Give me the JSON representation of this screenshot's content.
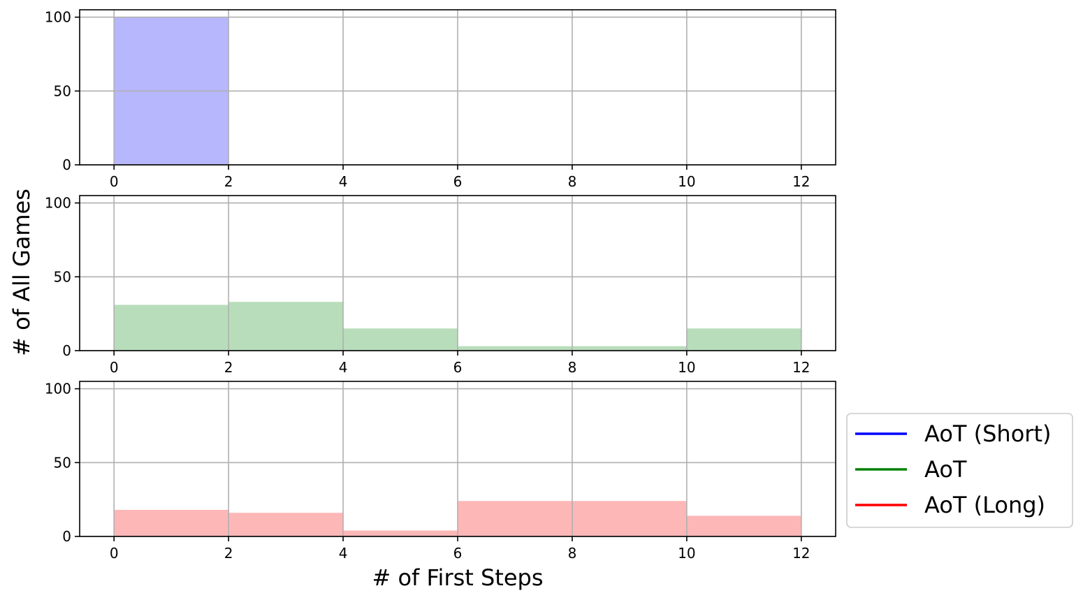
{
  "chart_data": {
    "type": "bar",
    "xlabel": "# of First Steps",
    "ylabel": "# of All Games",
    "bin_edges": [
      0,
      2,
      4,
      6,
      8,
      10,
      12
    ],
    "xlim": [
      -0.6,
      12.6
    ],
    "ylim": [
      0,
      105
    ],
    "xticks": [
      0,
      2,
      4,
      6,
      8,
      10,
      12
    ],
    "yticks": [
      0,
      50,
      100
    ],
    "grid": true,
    "legend_position": "right of bottom panel",
    "series": [
      {
        "name": "AoT (Short)",
        "color": "#0000ff",
        "fill": "#b7b7fe",
        "values": [
          100,
          0,
          0,
          0,
          0,
          0
        ]
      },
      {
        "name": "AoT",
        "color": "#008000",
        "fill": "#b8ddba",
        "values": [
          31,
          33,
          15,
          3,
          3,
          15
        ]
      },
      {
        "name": "AoT (Long)",
        "color": "#ff0000",
        "fill": "#feb7b7",
        "values": [
          18,
          16,
          4,
          24,
          24,
          14
        ]
      }
    ]
  }
}
